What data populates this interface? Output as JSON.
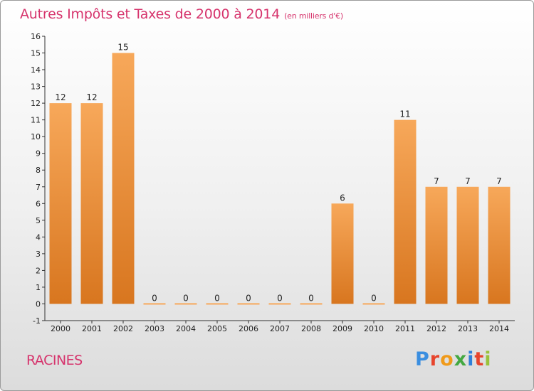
{
  "header": {
    "title": "Autres Impôts et Taxes de 2000 à 2014",
    "subtitle": "(en milliers d'€)"
  },
  "footer": {
    "location": "RACINES",
    "brand_letters": [
      "P",
      "r",
      "o",
      "x",
      "i",
      "t",
      "i"
    ]
  },
  "colors": {
    "title": "#d6336c",
    "bar_light": "#f7a85a",
    "bar_dark": "#d8761f",
    "axis": "#333333",
    "grid": "#cccccc"
  },
  "chart_data": {
    "type": "bar",
    "categories": [
      "2000",
      "2001",
      "2002",
      "2003",
      "2004",
      "2005",
      "2006",
      "2007",
      "2008",
      "2009",
      "2010",
      "2011",
      "2012",
      "2013",
      "2014"
    ],
    "values": [
      12,
      12,
      15,
      0,
      0,
      0,
      0,
      0,
      0,
      6,
      0,
      11,
      7,
      7,
      7
    ],
    "data_labels": [
      "12",
      "12",
      "15",
      "0",
      "0",
      "0",
      "0",
      "0",
      "0",
      "6",
      "0",
      "11",
      "7",
      "7",
      "7"
    ],
    "title": "Autres Impôts et Taxes de 2000 à 2014",
    "subtitle": "(en milliers d'€)",
    "xlabel": "",
    "ylabel": "",
    "ylim": [
      -1,
      16
    ],
    "yticks": [
      -1,
      0,
      1,
      2,
      3,
      4,
      5,
      6,
      7,
      8,
      9,
      10,
      11,
      12,
      13,
      14,
      15,
      16
    ],
    "grid": false,
    "legend": "none"
  }
}
